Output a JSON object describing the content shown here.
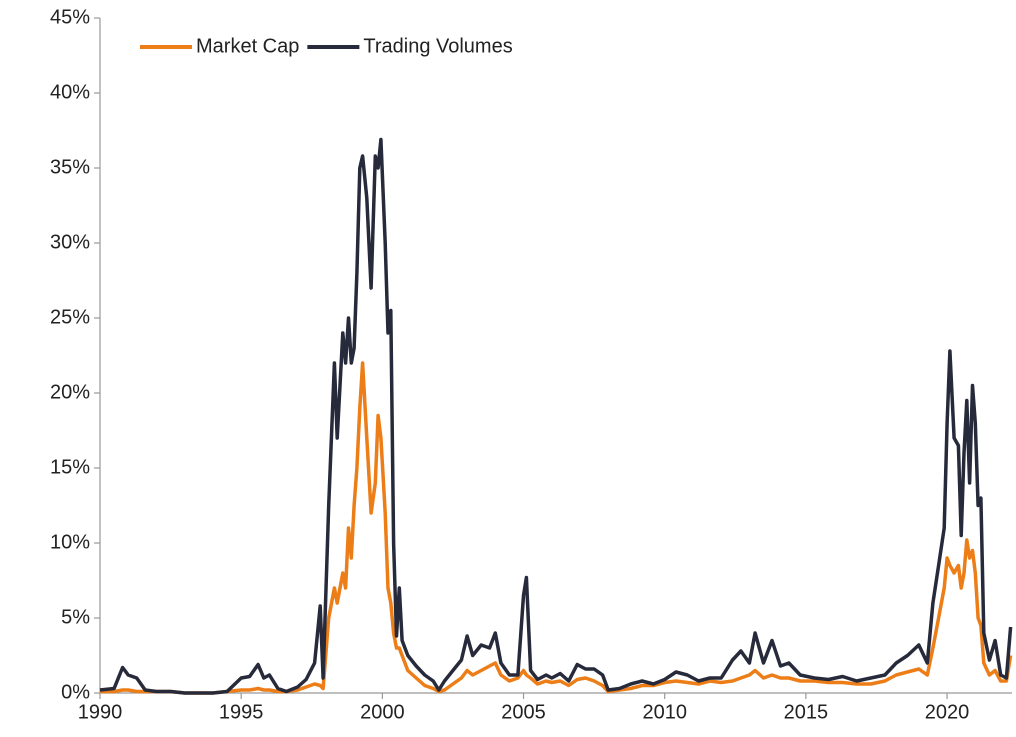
{
  "chart_data": {
    "type": "line",
    "x": [
      1990.0,
      1990.5,
      1990.8,
      1991.0,
      1991.3,
      1991.6,
      1992.0,
      1992.5,
      1993.0,
      1993.5,
      1994.0,
      1994.5,
      1995.0,
      1995.3,
      1995.6,
      1995.8,
      1996.0,
      1996.3,
      1996.6,
      1997.0,
      1997.3,
      1997.6,
      1997.8,
      1997.9,
      1998.1,
      1998.3,
      1998.4,
      1998.6,
      1998.7,
      1998.8,
      1998.9,
      1999.0,
      1999.1,
      1999.2,
      1999.3,
      1999.45,
      1999.6,
      1999.75,
      1999.85,
      1999.95,
      2000.1,
      2000.2,
      2000.3,
      2000.4,
      2000.5,
      2000.6,
      2000.7,
      2000.9,
      2001.2,
      2001.5,
      2001.8,
      2002.0,
      2002.2,
      2002.5,
      2002.8,
      2003.0,
      2003.2,
      2003.5,
      2003.8,
      2004.0,
      2004.2,
      2004.5,
      2004.8,
      2005.0,
      2005.1,
      2005.25,
      2005.5,
      2005.8,
      2006.0,
      2006.3,
      2006.6,
      2006.9,
      2007.2,
      2007.5,
      2007.8,
      2008.0,
      2008.4,
      2008.8,
      2009.2,
      2009.6,
      2010.0,
      2010.4,
      2010.8,
      2011.2,
      2011.6,
      2012.0,
      2012.4,
      2012.7,
      2013.0,
      2013.2,
      2013.5,
      2013.8,
      2014.1,
      2014.4,
      2014.8,
      2015.3,
      2015.8,
      2016.3,
      2016.8,
      2017.3,
      2017.8,
      2018.2,
      2018.6,
      2019.0,
      2019.3,
      2019.5,
      2019.7,
      2019.9,
      2020.0,
      2020.1,
      2020.25,
      2020.4,
      2020.5,
      2020.6,
      2020.7,
      2020.8,
      2020.9,
      2021.0,
      2021.1,
      2021.2,
      2021.3,
      2021.5,
      2021.7,
      2021.9,
      2022.1,
      2022.25
    ],
    "series": [
      {
        "name": "Market Cap",
        "color": "#ed7d17",
        "values": [
          0.1,
          0.1,
          0.2,
          0.2,
          0.1,
          0.1,
          0.1,
          0.1,
          0.0,
          0.0,
          0.0,
          0.1,
          0.2,
          0.2,
          0.3,
          0.2,
          0.2,
          0.1,
          0.1,
          0.2,
          0.4,
          0.6,
          0.5,
          0.3,
          5.0,
          7.0,
          6.0,
          8.0,
          7.0,
          11.0,
          9.0,
          12.5,
          15.0,
          19.0,
          22.0,
          17.0,
          12.0,
          14.0,
          18.5,
          17.0,
          12.0,
          7.0,
          6.0,
          4.0,
          3.0,
          3.0,
          2.5,
          1.5,
          1.0,
          0.5,
          0.3,
          0.1,
          0.2,
          0.6,
          1.0,
          1.5,
          1.2,
          1.5,
          1.8,
          2.0,
          1.2,
          0.8,
          1.0,
          1.5,
          1.2,
          1.0,
          0.6,
          0.8,
          0.7,
          0.8,
          0.5,
          0.9,
          1.0,
          0.8,
          0.5,
          0.1,
          0.2,
          0.3,
          0.5,
          0.5,
          0.7,
          0.8,
          0.7,
          0.6,
          0.8,
          0.7,
          0.8,
          1.0,
          1.2,
          1.5,
          1.0,
          1.2,
          1.0,
          1.0,
          0.8,
          0.8,
          0.7,
          0.7,
          0.6,
          0.6,
          0.8,
          1.2,
          1.4,
          1.6,
          1.2,
          3.0,
          5.0,
          7.0,
          9.0,
          8.5,
          8.0,
          8.5,
          7.0,
          8.0,
          10.2,
          9.0,
          9.5,
          8.0,
          5.0,
          4.5,
          2.0,
          1.2,
          1.5,
          0.8,
          0.8,
          2.5
        ]
      },
      {
        "name": "Trading Volumes",
        "color": "#262a3a",
        "values": [
          0.2,
          0.3,
          1.7,
          1.2,
          1.0,
          0.2,
          0.1,
          0.1,
          0.0,
          0.0,
          0.0,
          0.1,
          1.0,
          1.1,
          1.9,
          1.0,
          1.2,
          0.3,
          0.1,
          0.4,
          0.9,
          2.0,
          5.8,
          1.0,
          12.5,
          22.0,
          17.0,
          24.0,
          22.0,
          25.0,
          22.0,
          23.0,
          28.0,
          35.0,
          35.8,
          33.0,
          27.0,
          35.8,
          35.0,
          36.9,
          30.0,
          24.0,
          25.5,
          10.0,
          3.8,
          7.0,
          3.5,
          2.5,
          1.8,
          1.2,
          0.8,
          0.2,
          0.8,
          1.5,
          2.2,
          3.8,
          2.5,
          3.2,
          3.0,
          4.0,
          2.0,
          1.2,
          1.2,
          6.5,
          7.7,
          1.5,
          0.9,
          1.2,
          1.0,
          1.3,
          0.8,
          1.9,
          1.6,
          1.6,
          1.2,
          0.2,
          0.3,
          0.6,
          0.8,
          0.6,
          0.9,
          1.4,
          1.2,
          0.8,
          1.0,
          1.0,
          2.2,
          2.8,
          2.0,
          4.0,
          2.0,
          3.5,
          1.8,
          2.0,
          1.2,
          1.0,
          0.9,
          1.1,
          0.8,
          1.0,
          1.2,
          2.0,
          2.5,
          3.2,
          2.0,
          6.0,
          8.5,
          11.0,
          18.0,
          22.8,
          17.0,
          16.5,
          10.5,
          16.0,
          19.5,
          14.0,
          20.5,
          18.0,
          12.5,
          13.0,
          4.0,
          2.2,
          3.5,
          1.2,
          1.0,
          4.4
        ]
      }
    ],
    "xlim": [
      1990,
      2022.3
    ],
    "xticks": [
      1990,
      1995,
      2000,
      2005,
      2010,
      2015,
      2020
    ],
    "ylim": [
      0,
      45
    ],
    "yticks": [
      {
        "value": 0,
        "label": "0%"
      },
      {
        "value": 5,
        "label": "5%"
      },
      {
        "value": 10,
        "label": "10%"
      },
      {
        "value": 15,
        "label": "15%"
      },
      {
        "value": 20,
        "label": "20%"
      },
      {
        "value": 25,
        "label": "25%"
      },
      {
        "value": 30,
        "label": "30%"
      },
      {
        "value": 35,
        "label": "35%"
      },
      {
        "value": 40,
        "label": "40%"
      },
      {
        "value": 45,
        "label": "45%"
      }
    ],
    "legend": "upper left"
  }
}
